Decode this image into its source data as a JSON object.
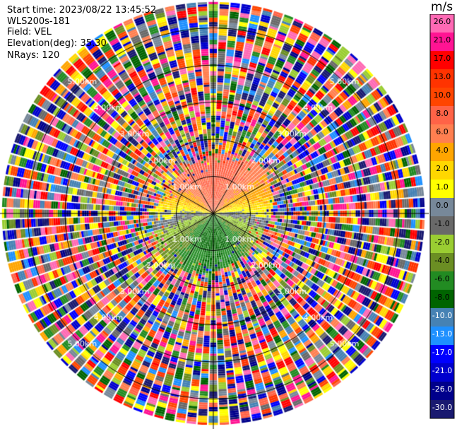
{
  "info": {
    "start_time": "Start time: 2023/08/22 13:45:52",
    "instrument": "WLS200s-181",
    "field": "Field: VEL",
    "elevation": "Elevation(deg): 35.30",
    "nrays": "NRays: 120"
  },
  "chart_data": {
    "type": "heatmap",
    "projection": "polar-ppi",
    "field": "VEL",
    "units": "m/s",
    "n_rays": 120,
    "range_rings_km": [
      1.0,
      2.0,
      3.0,
      4.0,
      5.0
    ],
    "ring_labels": [
      "1.00km",
      "2.00km",
      "3.00km",
      "4.00km",
      "5.00km"
    ],
    "max_range_km": 5.7,
    "pattern": "coherent velocity field within ~1.7 km (positive 2–8 m/s north, near 0 middle, negative -2 to -8 m/s south); noisy random values beyond",
    "colorbar": {
      "ticks": [
        "26.0",
        "21.0",
        "17.0",
        "13.0",
        "10.0",
        "8.0",
        "6.0",
        "4.0",
        "2.0",
        "1.0",
        "0.0",
        "-1.0",
        "-2.0",
        "-4.0",
        "-6.0",
        "-8.0",
        "-10.0",
        "-13.0",
        "-17.0",
        "-21.0",
        "-26.0",
        "-30.0"
      ],
      "colors": [
        "#ff69b4",
        "#ff1493",
        "#ff0000",
        "#ff3300",
        "#ff4500",
        "#ff6347",
        "#ff7f50",
        "#ffa500",
        "#ffd700",
        "#ffff00",
        "#778899",
        "#696969",
        "#9acd32",
        "#6b8e23",
        "#228b22",
        "#006400",
        "#4682b4",
        "#1e90ff",
        "#0000ff",
        "#0000cd",
        "#00008b",
        "#191970"
      ]
    }
  }
}
